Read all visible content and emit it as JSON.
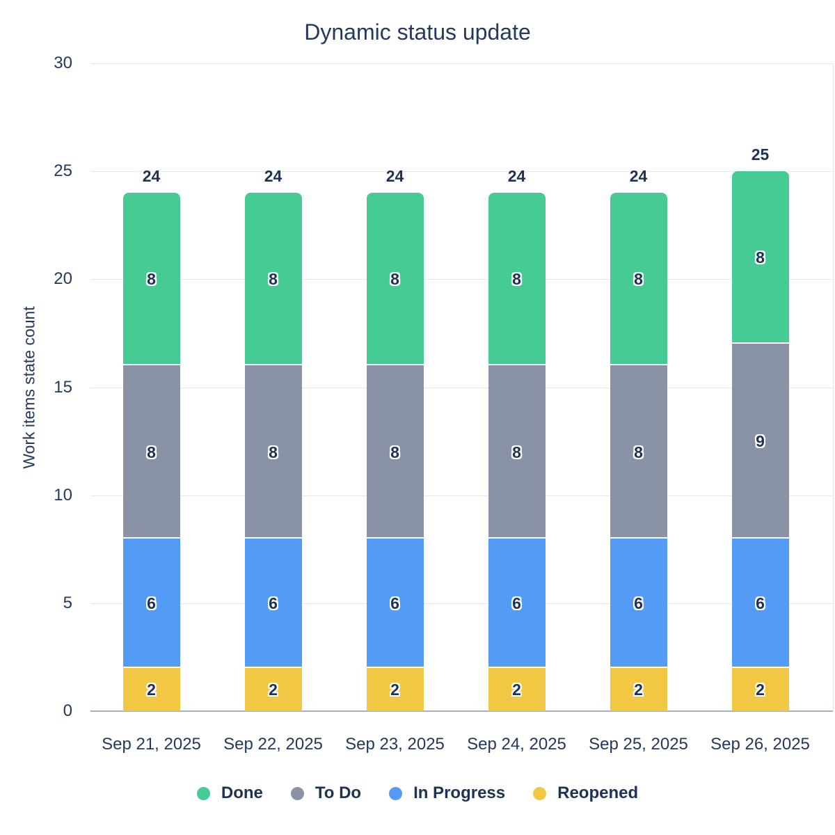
{
  "title": "Dynamic status update",
  "chart_data": {
    "type": "bar",
    "stacked": true,
    "title": "Dynamic status update",
    "xlabel": "",
    "ylabel": "Work items state count",
    "ylim": [
      0,
      30
    ],
    "yticks": [
      0,
      5,
      10,
      15,
      20,
      25,
      30
    ],
    "grid": true,
    "legend_position": "bottom",
    "categories": [
      "Sep 21, 2025",
      "Sep 22, 2025",
      "Sep 23, 2025",
      "Sep 24, 2025",
      "Sep 25, 2025",
      "Sep 26, 2025"
    ],
    "series": [
      {
        "name": "Reopened",
        "color": "#F2C743",
        "values": [
          2,
          2,
          2,
          2,
          2,
          2
        ]
      },
      {
        "name": "In Progress",
        "color": "#549BF5",
        "values": [
          6,
          6,
          6,
          6,
          6,
          6
        ]
      },
      {
        "name": "To Do",
        "color": "#8A93A5",
        "values": [
          8,
          8,
          8,
          8,
          8,
          9
        ]
      },
      {
        "name": "Done",
        "color": "#45CB93",
        "values": [
          8,
          8,
          8,
          8,
          8,
          8
        ]
      }
    ],
    "totals": [
      24,
      24,
      24,
      24,
      24,
      25
    ],
    "legend": [
      "Done",
      "To Do",
      "In Progress",
      "Reopened"
    ]
  },
  "colors": {
    "text": "#23395F",
    "label_text": "#1E3255",
    "gridline": "#E4E7EB",
    "baseline": "#A8B0BC",
    "background": "#FFFFFF"
  }
}
